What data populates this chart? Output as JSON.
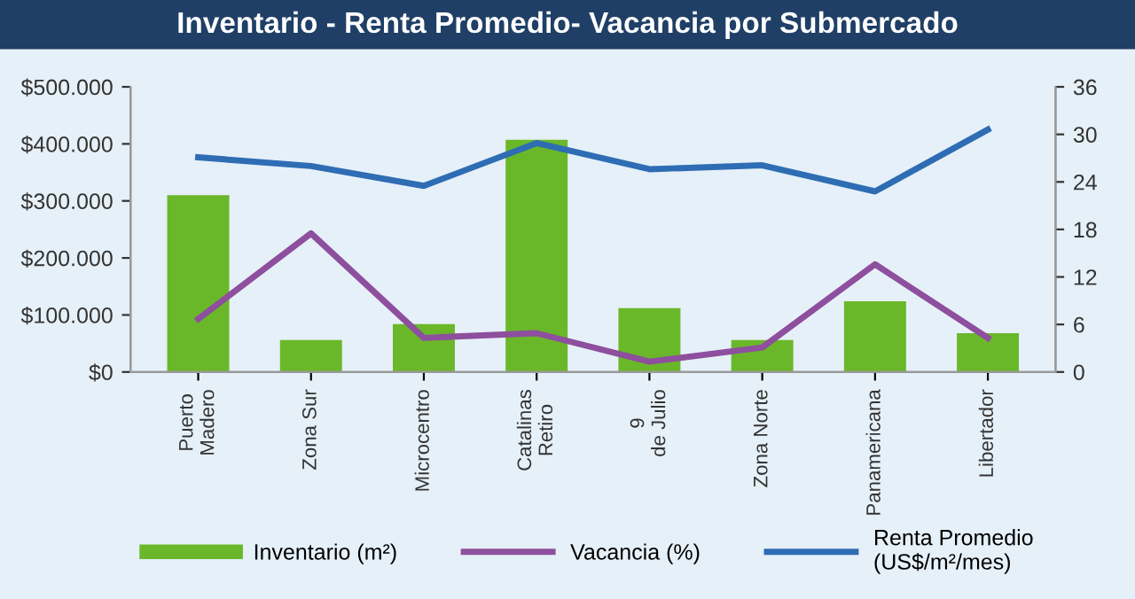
{
  "chart_data": {
    "type": "bar",
    "title": "Inventario - Renta Promedio- Vacancia por Submercado",
    "categories": [
      "Puerto\nMadero",
      "Zona Sur",
      "Microcentro",
      "Catalinas\nRetiro",
      "9\nde Julio",
      "Zona Norte",
      "Panamericana",
      "Libertador"
    ],
    "series": [
      {
        "name": "Inventario (m²)",
        "color": "#6ab82a",
        "values": [
          310000,
          56000,
          84000,
          407000,
          112000,
          56000,
          124000,
          68000
        ]
      },
      {
        "name": "Vacancia (%)",
        "type": "line",
        "axis": "y2",
        "color": "#8e4f9e",
        "values": [
          6.7,
          17.5,
          4.3,
          4.9,
          1.3,
          3.1,
          13.6,
          4.3
        ]
      },
      {
        "name": "Renta Promedio\n(US$/m²/mes)",
        "type": "line",
        "axis": "y2",
        "color": "#2e6db4",
        "values": [
          27.1,
          26.0,
          23.5,
          28.9,
          25.6,
          26.1,
          22.8,
          30.6
        ]
      }
    ],
    "ylim": [
      0,
      500000
    ],
    "yticks": [
      {
        "value": 0,
        "label": "$0"
      },
      {
        "value": 100000,
        "label": "$100.000"
      },
      {
        "value": 200000,
        "label": "$200.000"
      },
      {
        "value": 300000,
        "label": "$300.000"
      },
      {
        "value": 400000,
        "label": "$400.000"
      },
      {
        "value": 500000,
        "label": "$500.000"
      }
    ],
    "y2lim": [
      0,
      36
    ],
    "y2ticks": [
      0,
      6,
      12,
      18,
      24,
      30,
      36
    ],
    "grid": false,
    "legend": "bottom",
    "marker": "none",
    "line_style": "solid"
  }
}
